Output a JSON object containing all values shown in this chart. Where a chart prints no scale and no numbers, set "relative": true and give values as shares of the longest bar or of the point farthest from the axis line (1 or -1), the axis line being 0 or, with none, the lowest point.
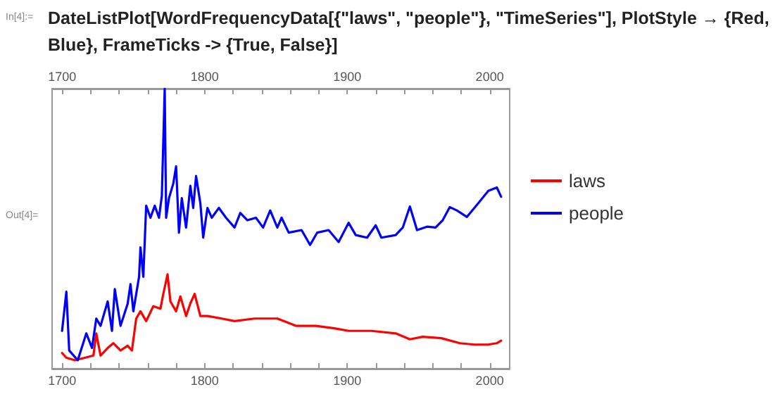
{
  "chart_data": {
    "type": "line",
    "title": "DateListPlot[WordFrequencyData[{\"laws\", \"people\"}, \"TimeSeries\"], PlotStyle → {Red, Blue}, FrameTicks -> {True, False}]",
    "annotations": [
      "In[4]:=",
      "Out[4]="
    ],
    "relative": true,
    "xlim": [
      1693,
      2014
    ],
    "xticks": [
      1700,
      {
        "value": 1720,
        "label": null
      },
      {
        "value": 1740,
        "label": null
      },
      {
        "value": 1760,
        "label": null
      },
      {
        "value": 1780,
        "label": null
      },
      1800,
      {
        "value": 1820,
        "label": null
      },
      {
        "value": 1840,
        "label": null
      },
      {
        "value": 1860,
        "label": null
      },
      {
        "value": 1880,
        "label": null
      },
      1900,
      {
        "value": 1920,
        "label": null
      },
      {
        "value": 1940,
        "label": null
      },
      {
        "value": 1960,
        "label": null
      },
      {
        "value": 1980,
        "label": null
      },
      2000
    ],
    "x2lim": [
      1693,
      2014
    ],
    "x2ticks": [
      1700,
      {
        "value": 1720,
        "label": null
      },
      {
        "value": 1740,
        "label": null
      },
      {
        "value": 1760,
        "label": null
      },
      {
        "value": 1780,
        "label": null
      },
      1800,
      {
        "value": 1820,
        "label": null
      },
      {
        "value": 1840,
        "label": null
      },
      {
        "value": 1860,
        "label": null
      },
      {
        "value": 1880,
        "label": null
      },
      1900,
      {
        "value": 1920,
        "label": null
      },
      {
        "value": 1940,
        "label": null
      },
      {
        "value": 1960,
        "label": null
      },
      {
        "value": 1980,
        "label": null
      },
      2000
    ],
    "legend": "right",
    "grid": false,
    "marker": "none",
    "line_style": "solid",
    "series": [
      {
        "name": "laws",
        "color": "#ff0000",
        "x": [
          1700,
          1703,
          1709,
          1716,
          1722,
          1724,
          1727,
          1732,
          1736,
          1741,
          1746,
          1749,
          1752,
          1755,
          1759,
          1764,
          1769,
          1771,
          1774,
          1776,
          1780,
          1783,
          1787,
          1790,
          1793,
          1797,
          1802,
          1812,
          1821,
          1835,
          1851,
          1864,
          1878,
          1891,
          1901,
          1917,
          1934,
          1944,
          1953,
          1966,
          1979,
          1989,
          1999,
          2005,
          2008
        ],
        "values": [
          0.056,
          0.039,
          0.03,
          0.039,
          0.047,
          0.126,
          0.047,
          0.074,
          0.091,
          0.065,
          0.082,
          0.065,
          0.179,
          0.205,
          0.17,
          0.223,
          0.214,
          0.267,
          0.337,
          0.24,
          0.205,
          0.258,
          0.188,
          0.233,
          0.267,
          0.188,
          0.188,
          0.179,
          0.17,
          0.179,
          0.179,
          0.153,
          0.153,
          0.144,
          0.135,
          0.135,
          0.126,
          0.105,
          0.114,
          0.109,
          0.091,
          0.086,
          0.086,
          0.091,
          0.1
        ]
      },
      {
        "name": "people",
        "color": "#0000ff",
        "x": [
          1700,
          1703,
          1705,
          1711,
          1717,
          1721,
          1724,
          1727,
          1732,
          1735,
          1737,
          1741,
          1746,
          1748,
          1750,
          1754,
          1755,
          1757,
          1759,
          1762,
          1765,
          1768,
          1770,
          1772,
          1773,
          1775,
          1778,
          1780,
          1782,
          1784,
          1787,
          1790,
          1792,
          1794,
          1797,
          1799,
          1802,
          1805,
          1810,
          1815,
          1821,
          1825,
          1830,
          1836,
          1841,
          1846,
          1851,
          1854,
          1859,
          1868,
          1874,
          1879,
          1887,
          1894,
          1901,
          1906,
          1914,
          1920,
          1924,
          1934,
          1939,
          1944,
          1949,
          1956,
          1962,
          1967,
          1972,
          1977,
          1984,
          1992,
          1999,
          2005,
          2008
        ],
        "values": [
          0.135,
          0.275,
          0.065,
          0.03,
          0.126,
          0.074,
          0.179,
          0.153,
          0.24,
          0.135,
          0.284,
          0.153,
          0.232,
          0.302,
          0.205,
          0.328,
          0.433,
          0.328,
          0.582,
          0.539,
          0.582,
          0.539,
          0.618,
          1,
          0.539,
          0.609,
          0.661,
          0.723,
          0.486,
          0.609,
          0.504,
          0.653,
          0.574,
          0.688,
          0.591,
          0.468,
          0.574,
          0.539,
          0.574,
          0.539,
          0.504,
          0.556,
          0.53,
          0.539,
          0.504,
          0.565,
          0.504,
          0.539,
          0.486,
          0.495,
          0.442,
          0.486,
          0.495,
          0.452,
          0.521,
          0.477,
          0.468,
          0.512,
          0.468,
          0.477,
          0.504,
          0.579,
          0.495,
          0.507,
          0.504,
          0.53,
          0.577,
          0.565,
          0.542,
          0.591,
          0.635,
          0.647,
          0.614
        ]
      }
    ]
  }
}
